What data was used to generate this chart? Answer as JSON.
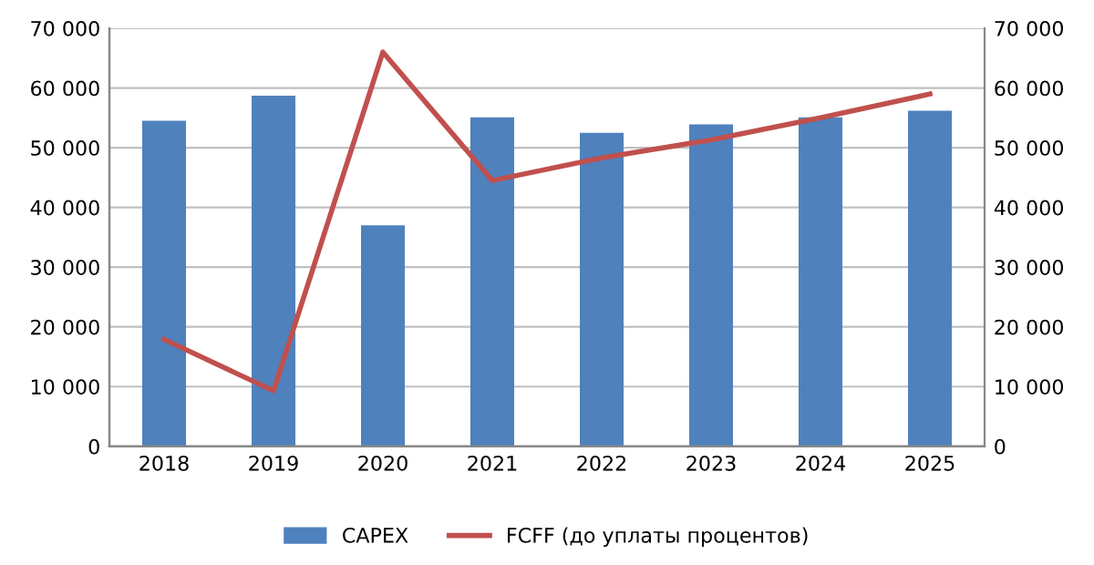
{
  "chart_data": {
    "type": "bar",
    "categories": [
      "2018",
      "2019",
      "2020",
      "2021",
      "2022",
      "2023",
      "2024",
      "2025"
    ],
    "series": [
      {
        "name": "CAPEX",
        "color": "#4f81bd",
        "values": [
          54500,
          58700,
          37000,
          55100,
          52500,
          53900,
          55100,
          56200
        ]
      },
      {
        "name": "FCFF (до уплаты процентов)",
        "type": "line",
        "axis": "y2",
        "color": "#c0504d",
        "values": [
          17900,
          9300,
          66000,
          44500,
          48300,
          51300,
          55000,
          59000
        ]
      }
    ],
    "ylim": [
      0,
      70000
    ],
    "yticks": [
      {
        "value": 0,
        "label": "0"
      },
      {
        "value": 10000,
        "label": "10 000"
      },
      {
        "value": 20000,
        "label": "20 000"
      },
      {
        "value": 30000,
        "label": "30 000"
      },
      {
        "value": 40000,
        "label": "40 000"
      },
      {
        "value": 50000,
        "label": "50 000"
      },
      {
        "value": 60000,
        "label": "60 000"
      },
      {
        "value": 70000,
        "label": "70 000"
      }
    ],
    "y2lim": [
      0,
      70000
    ],
    "y2ticks": [
      {
        "value": 0,
        "label": "0"
      },
      {
        "value": 10000,
        "label": "10 000"
      },
      {
        "value": 20000,
        "label": "20 000"
      },
      {
        "value": 30000,
        "label": "30 000"
      },
      {
        "value": 40000,
        "label": "40 000"
      },
      {
        "value": 50000,
        "label": "50 000"
      },
      {
        "value": 60000,
        "label": "60 000"
      },
      {
        "value": 70000,
        "label": "70 000"
      }
    ],
    "grid": "y",
    "legend": "bottom"
  }
}
